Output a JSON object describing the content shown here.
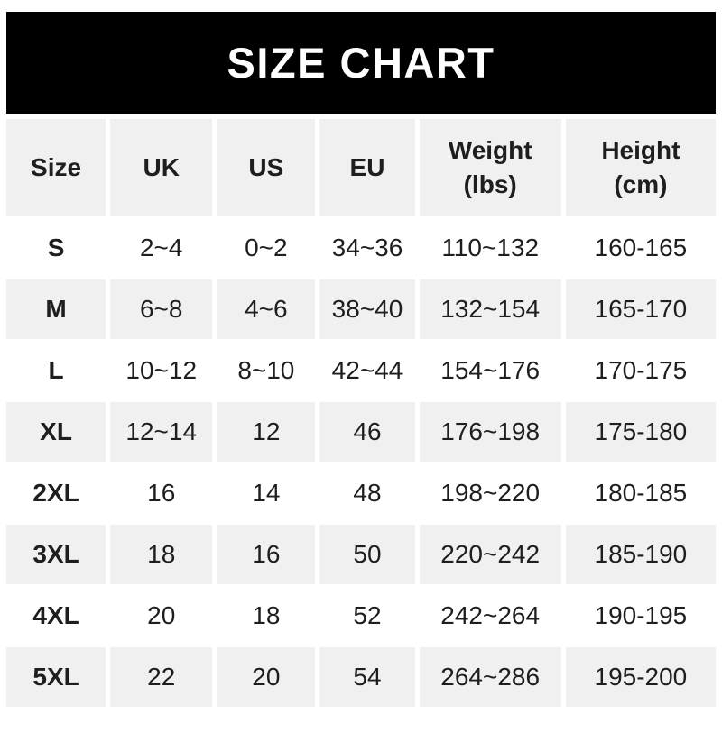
{
  "title": "SIZE CHART",
  "colors": {
    "banner_bg": "#000000",
    "banner_text": "#ffffff",
    "row_shade_bg": "#f0f0f0",
    "text": "#1e1e1e",
    "page_bg": "#ffffff"
  },
  "chart_data": {
    "type": "table",
    "title": "SIZE CHART",
    "columns": [
      "Size",
      "UK",
      "US",
      "EU",
      "Weight (lbs)",
      "Height (cm)"
    ],
    "rows": [
      [
        "S",
        "2~4",
        "0~2",
        "34~36",
        "110~132",
        "160-165"
      ],
      [
        "M",
        "6~8",
        "4~6",
        "38~40",
        "132~154",
        "165-170"
      ],
      [
        "L",
        "10~12",
        "8~10",
        "42~44",
        "154~176",
        "170-175"
      ],
      [
        "XL",
        "12~14",
        "12",
        "46",
        "176~198",
        "175-180"
      ],
      [
        "2XL",
        "16",
        "14",
        "48",
        "198~220",
        "180-185"
      ],
      [
        "3XL",
        "18",
        "16",
        "50",
        "220~242",
        "185-190"
      ],
      [
        "4XL",
        "20",
        "18",
        "52",
        "242~264",
        "190-195"
      ],
      [
        "5XL",
        "22",
        "20",
        "54",
        "264~286",
        "195-200"
      ]
    ],
    "layout": {
      "shaded_rows": [
        "header",
        "M",
        "XL",
        "3XL",
        "5XL"
      ],
      "weight_range_separator": "~",
      "height_range_separator": "-"
    }
  }
}
